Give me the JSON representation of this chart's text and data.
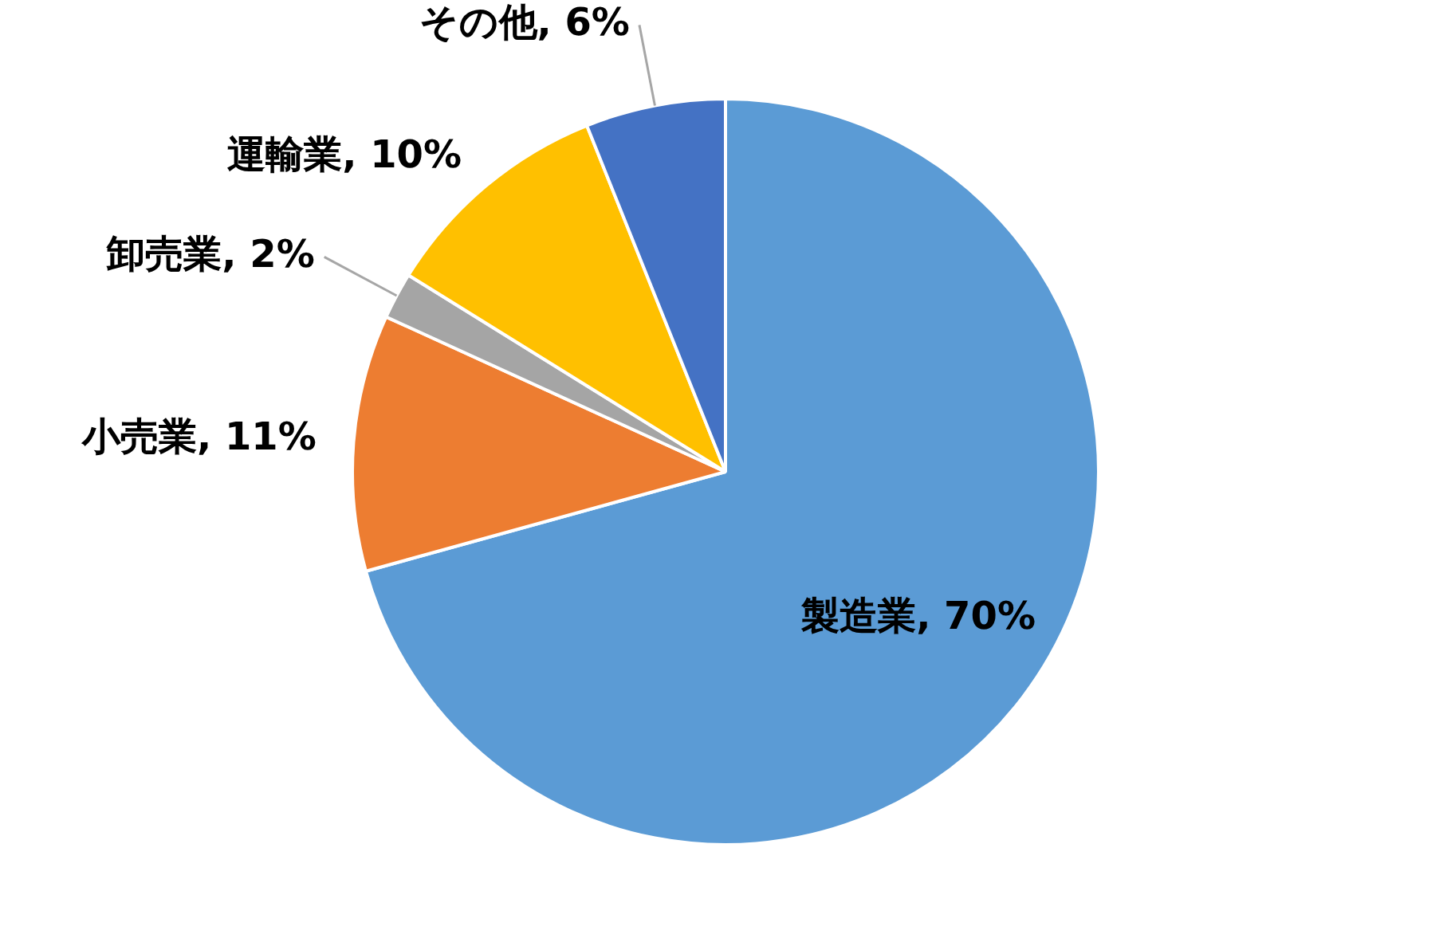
{
  "chart_data": {
    "type": "pie",
    "categories": [
      "製造業",
      "小売業",
      "卸売業",
      "運輸業",
      "その他"
    ],
    "values": [
      70,
      11,
      2,
      10,
      6
    ],
    "value_labels": [
      "70%",
      "11%",
      "2%",
      "10%",
      "6%"
    ],
    "colors": [
      "#5b9bd5",
      "#ed7d31",
      "#a5a5a5",
      "#ffc000",
      "#4472c4"
    ],
    "legend": false
  }
}
